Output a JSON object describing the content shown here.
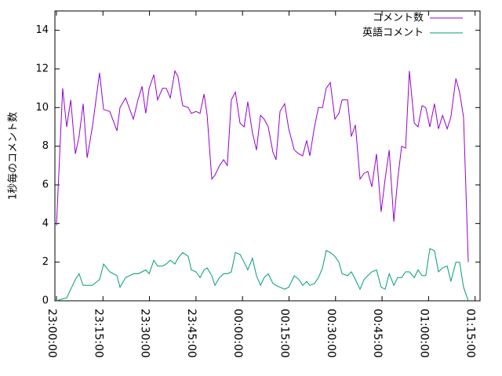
{
  "chart_data": {
    "type": "line",
    "y_label": "1秒毎のコメント数",
    "x": [
      0,
      2,
      3.3,
      4.6,
      6.1,
      7.3,
      8.6,
      9.9,
      11.6,
      13.9,
      15.2,
      17.2,
      19.5,
      20.5,
      22.3,
      24.8,
      26.3,
      27.6,
      28.8,
      29.9,
      31.4,
      32.6,
      34.2,
      35.4,
      36.7,
      38.2,
      39.2,
      40.7,
      42.5,
      43.5,
      45,
      46.3,
      47.6,
      48.6,
      50.1,
      51.1,
      52.6,
      53.9,
      55.1,
      56.4,
      57.7,
      59.2,
      60.5,
      61.7,
      63.2,
      64.5,
      65.8,
      67,
      68.3,
      69.8,
      70.8,
      72.1,
      73.6,
      74.9,
      76.7,
      78.2,
      79.4,
      80.7,
      81.7,
      83.2,
      84.5,
      85.8,
      87,
      88.3,
      89.8,
      91.1,
      92.1,
      93.9,
      95.1,
      96.4,
      97.9,
      99.2,
      100.4,
      101.7,
      103.2,
      104.7,
      106,
      107.3,
      108.8,
      110,
      111.3,
      112.6,
      113.8,
      115.4,
      116.6,
      117.9,
      119.1,
      120.4,
      121.9,
      123.2,
      124.5,
      126,
      127.2,
      128.8,
      130,
      131.3,
      132.8
    ],
    "series": [
      {
        "name": "コメント数",
        "color": "#9400d3",
        "values": [
          3.9,
          11,
          9,
          10.4,
          7.6,
          8.5,
          10.2,
          7.4,
          9,
          11.8,
          9.9,
          9.8,
          8.8,
          10,
          10.5,
          9.4,
          10.4,
          11.1,
          9.7,
          11,
          11.7,
          10.4,
          11,
          11,
          10.5,
          11.9,
          11.6,
          10.1,
          10,
          9.7,
          9.8,
          9.7,
          10.7,
          9.6,
          6.3,
          6.5,
          7,
          7.3,
          7,
          10.4,
          10.8,
          9.2,
          9,
          10.3,
          8.7,
          7.8,
          9.6,
          9.4,
          9,
          7.7,
          7.3,
          9.8,
          10.2,
          8.9,
          7.8,
          7.6,
          7.5,
          8.3,
          7.5,
          9,
          10,
          10,
          11,
          11.3,
          9.4,
          9.7,
          10.4,
          10.4,
          8.5,
          9.1,
          6.3,
          6.6,
          6.7,
          5.9,
          7.6,
          4.6,
          6.3,
          7.8,
          4.1,
          6.2,
          8,
          7.9,
          11.9,
          9.2,
          9,
          10.1,
          10,
          9,
          10.2,
          8.9,
          9.6,
          8.9,
          9.5,
          11.5,
          10.8,
          9.5,
          2
        ]
      },
      {
        "name": "英語コメント",
        "color": "#009e73",
        "values": [
          0,
          0.1,
          0.15,
          0.6,
          1.1,
          1.4,
          0.8,
          0.8,
          0.8,
          1.1,
          1.9,
          1.5,
          1.3,
          0.7,
          1.2,
          1.4,
          1.4,
          1.5,
          1.6,
          1.4,
          2.1,
          1.8,
          1.8,
          1.9,
          2.1,
          1.9,
          2.2,
          2.5,
          2.3,
          1.6,
          1.5,
          1.2,
          1.6,
          1.7,
          1.3,
          0.8,
          1.2,
          1.4,
          1.4,
          1.5,
          2.5,
          2.4,
          2,
          1.6,
          2.2,
          1.3,
          0.8,
          1.2,
          1.4,
          0.9,
          0.8,
          0.7,
          0.6,
          0.7,
          1.3,
          1.1,
          0.8,
          1,
          0.8,
          0.9,
          1.2,
          1.7,
          2.6,
          2.5,
          2.3,
          2,
          1.4,
          1.3,
          1.5,
          1.1,
          0.6,
          1.1,
          1.3,
          1.5,
          1.6,
          0.7,
          0.6,
          1.4,
          0.8,
          1.2,
          1.2,
          1.5,
          1.5,
          1.2,
          1.6,
          1.3,
          1.3,
          2.7,
          2.6,
          1.5,
          1.7,
          1.8,
          1,
          2,
          2,
          0.7,
          0
        ]
      }
    ],
    "xlim": [
      -0.5,
      136.6
    ],
    "xticks": [
      {
        "value": 0,
        "label": "23:00:00"
      },
      {
        "value": 15,
        "label": "23:15:00"
      },
      {
        "value": 30,
        "label": "23:30:00"
      },
      {
        "value": 45,
        "label": "23:45:00"
      },
      {
        "value": 60,
        "label": "00:00:00"
      },
      {
        "value": 75,
        "label": "00:15:00"
      },
      {
        "value": 90,
        "label": "00:30:00"
      },
      {
        "value": 105,
        "label": "00:45:00"
      },
      {
        "value": 120,
        "label": "01:00:00"
      },
      {
        "value": 135,
        "label": "01:15:00"
      }
    ],
    "ylim": [
      0,
      15
    ],
    "yticks": [
      0,
      2,
      4,
      6,
      8,
      10,
      12,
      14
    ],
    "legend": "top-right"
  }
}
